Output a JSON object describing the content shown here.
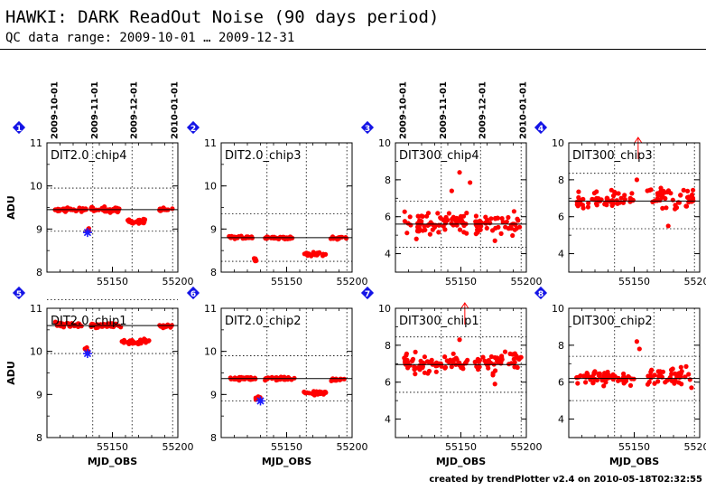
{
  "header": {
    "title": "HAWKI: DARK ReadOut Noise (90 days period)",
    "subtitle": "QC data range: 2009-10-01 … 2009-12-31",
    "footer": "created by trendPlotter v2.4 on 2010-05-18T02:32:55"
  },
  "colors": {
    "points": "#ff0000",
    "marker": "#1a1aff",
    "badge": "#1414e6",
    "line": "#000000"
  },
  "icons": {
    "panel_badge": "blue-diamond-number-icon",
    "outlier_marker": "red-arrow-icon",
    "secondary_points": "blue-star-icon"
  },
  "chart_data": [
    {
      "type": "scatter",
      "number": "1",
      "label": "DIT2.0_chip4",
      "xlim": [
        55100,
        55200
      ],
      "xticks": [
        55150,
        55200
      ],
      "xlabel": "",
      "ylim": [
        8,
        11
      ],
      "yticks": [
        8,
        9,
        10,
        11
      ],
      "ylabel": "ADU",
      "date_ticks": [
        "2009-10-01",
        "2009-11-01",
        "2009-12-01",
        "2010-01-01"
      ],
      "median": 9.45,
      "band": [
        8.95,
        9.95
      ],
      "clusters": [
        {
          "x": [
            55106,
            55130
          ],
          "y": [
            9.45,
            0.04
          ],
          "n": 40
        },
        {
          "x": [
            55130,
            55132
          ],
          "y": [
            9.0,
            0.05
          ],
          "n": 6
        },
        {
          "x": [
            55133,
            55157
          ],
          "y": [
            9.45,
            0.05
          ],
          "n": 40
        },
        {
          "x": [
            55161,
            55175
          ],
          "y": [
            9.18,
            0.05
          ],
          "n": 26
        },
        {
          "x": [
            55186,
            55196
          ],
          "y": [
            9.45,
            0.03
          ],
          "n": 16
        }
      ],
      "markers": [
        {
          "x": 55131,
          "y": 8.92
        }
      ]
    },
    {
      "type": "scatter",
      "number": "2",
      "label": "DIT2.0_chip3",
      "xlim": [
        55100,
        55200
      ],
      "xticks": [
        55150,
        55200
      ],
      "xlabel": "",
      "ylim": [
        8,
        11
      ],
      "yticks": [
        8,
        9,
        10,
        11
      ],
      "ylabel": "",
      "date_ticks": [],
      "median": 8.8,
      "band": [
        8.25,
        9.35
      ],
      "clusters": [
        {
          "x": [
            55106,
            55124
          ],
          "y": [
            8.8,
            0.03
          ],
          "n": 32
        },
        {
          "x": [
            55125,
            55128
          ],
          "y": [
            8.3,
            0.04
          ],
          "n": 8
        },
        {
          "x": [
            55130,
            55155
          ],
          "y": [
            8.8,
            0.03
          ],
          "n": 40
        },
        {
          "x": [
            55163,
            55180
          ],
          "y": [
            8.42,
            0.04
          ],
          "n": 28
        },
        {
          "x": [
            55182,
            55196
          ],
          "y": [
            8.8,
            0.03
          ],
          "n": 14
        }
      ],
      "markers": []
    },
    {
      "type": "scatter",
      "number": "3",
      "label": "DIT300_chip4",
      "xlim": [
        55100,
        55200
      ],
      "xticks": [
        55150,
        55200
      ],
      "xlabel": "",
      "ylim": [
        3,
        10
      ],
      "yticks": [
        4,
        6,
        8,
        10
      ],
      "ylabel": "",
      "date_ticks": [
        "2009-10-01",
        "2009-11-01",
        "2009-12-01",
        "2010-01-01"
      ],
      "median": 5.6,
      "band": [
        4.35,
        6.85
      ],
      "clusters": [
        {
          "x": [
            55106,
            55155
          ],
          "y": [
            5.6,
            0.45
          ],
          "n": 70
        },
        {
          "x": [
            55160,
            55196
          ],
          "y": [
            5.6,
            0.5
          ],
          "n": 50
        }
      ],
      "points": [
        [
          55149,
          8.4
        ],
        [
          55157,
          7.85
        ],
        [
          55143,
          7.4
        ],
        [
          55176,
          4.7
        ],
        [
          55116,
          4.8
        ]
      ],
      "markers": []
    },
    {
      "type": "scatter",
      "number": "4",
      "label": "DIT300_chip3",
      "xlim": [
        55100,
        55200
      ],
      "xticks": [
        55150,
        55200
      ],
      "xlabel": "",
      "ylim": [
        3,
        10
      ],
      "yticks": [
        4,
        6,
        8,
        10
      ],
      "ylabel": "",
      "date_ticks": [],
      "median": 6.85,
      "band": [
        5.35,
        8.35
      ],
      "clusters": [
        {
          "x": [
            55106,
            55150
          ],
          "y": [
            6.9,
            0.4
          ],
          "n": 60
        },
        {
          "x": [
            55160,
            55196
          ],
          "y": [
            7.0,
            0.5
          ],
          "n": 45
        }
      ],
      "points": [
        [
          55152,
          8.0
        ],
        [
          55176,
          5.5
        ]
      ],
      "outliers": [
        {
          "x": 55153
        }
      ],
      "markers": []
    },
    {
      "type": "scatter",
      "number": "5",
      "label": "DIT2.0_chip1",
      "xlim": [
        55100,
        55200
      ],
      "xticks": [
        55150,
        55200
      ],
      "xlabel": "MJD_OBS",
      "ylim": [
        8,
        11
      ],
      "yticks": [
        8,
        9,
        10,
        11
      ],
      "ylabel": "ADU",
      "date_ticks": [],
      "median": 10.6,
      "band": [
        9.95,
        11.2
      ],
      "clusters": [
        {
          "x": [
            55106,
            55128
          ],
          "y": [
            10.62,
            0.04
          ],
          "n": 40
        },
        {
          "x": [
            55129,
            55132
          ],
          "y": [
            10.02,
            0.05
          ],
          "n": 6
        },
        {
          "x": [
            55133,
            55157
          ],
          "y": [
            10.6,
            0.05
          ],
          "n": 40
        },
        {
          "x": [
            55157,
            55159
          ],
          "y": [
            10.25,
            0.05
          ],
          "n": 4
        },
        {
          "x": [
            55161,
            55178
          ],
          "y": [
            10.22,
            0.05
          ],
          "n": 28
        },
        {
          "x": [
            55186,
            55196
          ],
          "y": [
            10.58,
            0.04
          ],
          "n": 14
        }
      ],
      "markers": [
        {
          "x": 55131,
          "y": 9.95
        }
      ]
    },
    {
      "type": "scatter",
      "number": "6",
      "label": "DIT2.0_chip2",
      "xlim": [
        55100,
        55200
      ],
      "xticks": [
        55150,
        55200
      ],
      "xlabel": "MJD_OBS",
      "ylim": [
        8,
        11
      ],
      "yticks": [
        8,
        9,
        10,
        11
      ],
      "ylabel": "",
      "date_ticks": [],
      "median": 9.37,
      "band": [
        8.85,
        9.9
      ],
      "clusters": [
        {
          "x": [
            55106,
            55128
          ],
          "y": [
            9.37,
            0.03
          ],
          "n": 36
        },
        {
          "x": [
            55126,
            55130
          ],
          "y": [
            8.9,
            0.05
          ],
          "n": 8
        },
        {
          "x": [
            55132,
            55156
          ],
          "y": [
            9.37,
            0.03
          ],
          "n": 40
        },
        {
          "x": [
            55163,
            55180
          ],
          "y": [
            9.03,
            0.04
          ],
          "n": 26
        },
        {
          "x": [
            55184,
            55196
          ],
          "y": [
            9.35,
            0.03
          ],
          "n": 14
        }
      ],
      "markers": [
        {
          "x": 55130,
          "y": 8.85
        }
      ]
    },
    {
      "type": "scatter",
      "number": "7",
      "label": "DIT300_chip1",
      "xlim": [
        55100,
        55200
      ],
      "xticks": [
        55150,
        55200
      ],
      "xlabel": "MJD_OBS",
      "ylim": [
        3,
        10
      ],
      "yticks": [
        4,
        6,
        8,
        10
      ],
      "ylabel": "",
      "date_ticks": [],
      "median": 6.95,
      "band": [
        5.45,
        8.45
      ],
      "clusters": [
        {
          "x": [
            55106,
            55155
          ],
          "y": [
            6.95,
            0.45
          ],
          "n": 70
        },
        {
          "x": [
            55160,
            55196
          ],
          "y": [
            7.1,
            0.5
          ],
          "n": 50
        }
      ],
      "points": [
        [
          55149,
          8.3
        ],
        [
          55176,
          5.9
        ]
      ],
      "outliers": [
        {
          "x": 55153
        }
      ],
      "markers": []
    },
    {
      "type": "scatter",
      "number": "8",
      "label": "DIT300_chip2",
      "xlim": [
        55100,
        55200
      ],
      "xticks": [
        55150,
        55200
      ],
      "xlabel": "MJD_OBS",
      "ylim": [
        3,
        10
      ],
      "yticks": [
        4,
        6,
        8,
        10
      ],
      "ylabel": "",
      "date_ticks": [],
      "median": 6.2,
      "band": [
        5.0,
        7.4
      ],
      "clusters": [
        {
          "x": [
            55106,
            55150
          ],
          "y": [
            6.2,
            0.35
          ],
          "n": 65
        },
        {
          "x": [
            55160,
            55196
          ],
          "y": [
            6.3,
            0.4
          ],
          "n": 45
        }
      ],
      "points": [
        [
          55152,
          8.2
        ],
        [
          55154,
          7.8
        ],
        [
          55186,
          5.9
        ]
      ],
      "markers": []
    }
  ]
}
